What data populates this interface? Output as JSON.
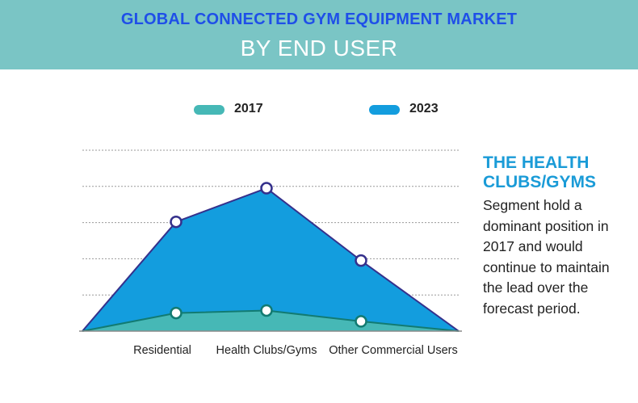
{
  "header": {
    "title": "GLOBAL CONNECTED GYM EQUIPMENT MARKET",
    "subtitle": "BY END USER"
  },
  "colors": {
    "banner": "#7ac5c5",
    "title": "#1f4fe8",
    "series_2017": "#46b8b6",
    "series_2023": "#139dde",
    "line_2017": "#127b72",
    "line_2023": "#35318c",
    "accent": "#1a9bd7"
  },
  "chart_data": {
    "type": "area",
    "title": "GLOBAL CONNECTED GYM EQUIPMENT MARKET BY END USER",
    "xlabel": "",
    "ylabel": "",
    "grid": true,
    "legend": "top",
    "ylim": [
      0,
      5
    ],
    "categories": [
      "Residential",
      "Health Clubs/Gyms",
      "Other Commercial Users"
    ],
    "series": [
      {
        "name": "2017",
        "values": [
          0.5,
          0.57,
          0.27
        ],
        "color": "#46b8b6",
        "line": "#127b72"
      },
      {
        "name": "2023",
        "values": [
          3.02,
          3.95,
          1.95
        ],
        "color": "#139dde",
        "line": "#35318c"
      }
    ]
  },
  "sidebar": {
    "title": "THE HEALTH CLUBS/GYMS",
    "body": "Segment hold a dominant position in 2017 and would continue to maintain the lead over the forecast period."
  }
}
